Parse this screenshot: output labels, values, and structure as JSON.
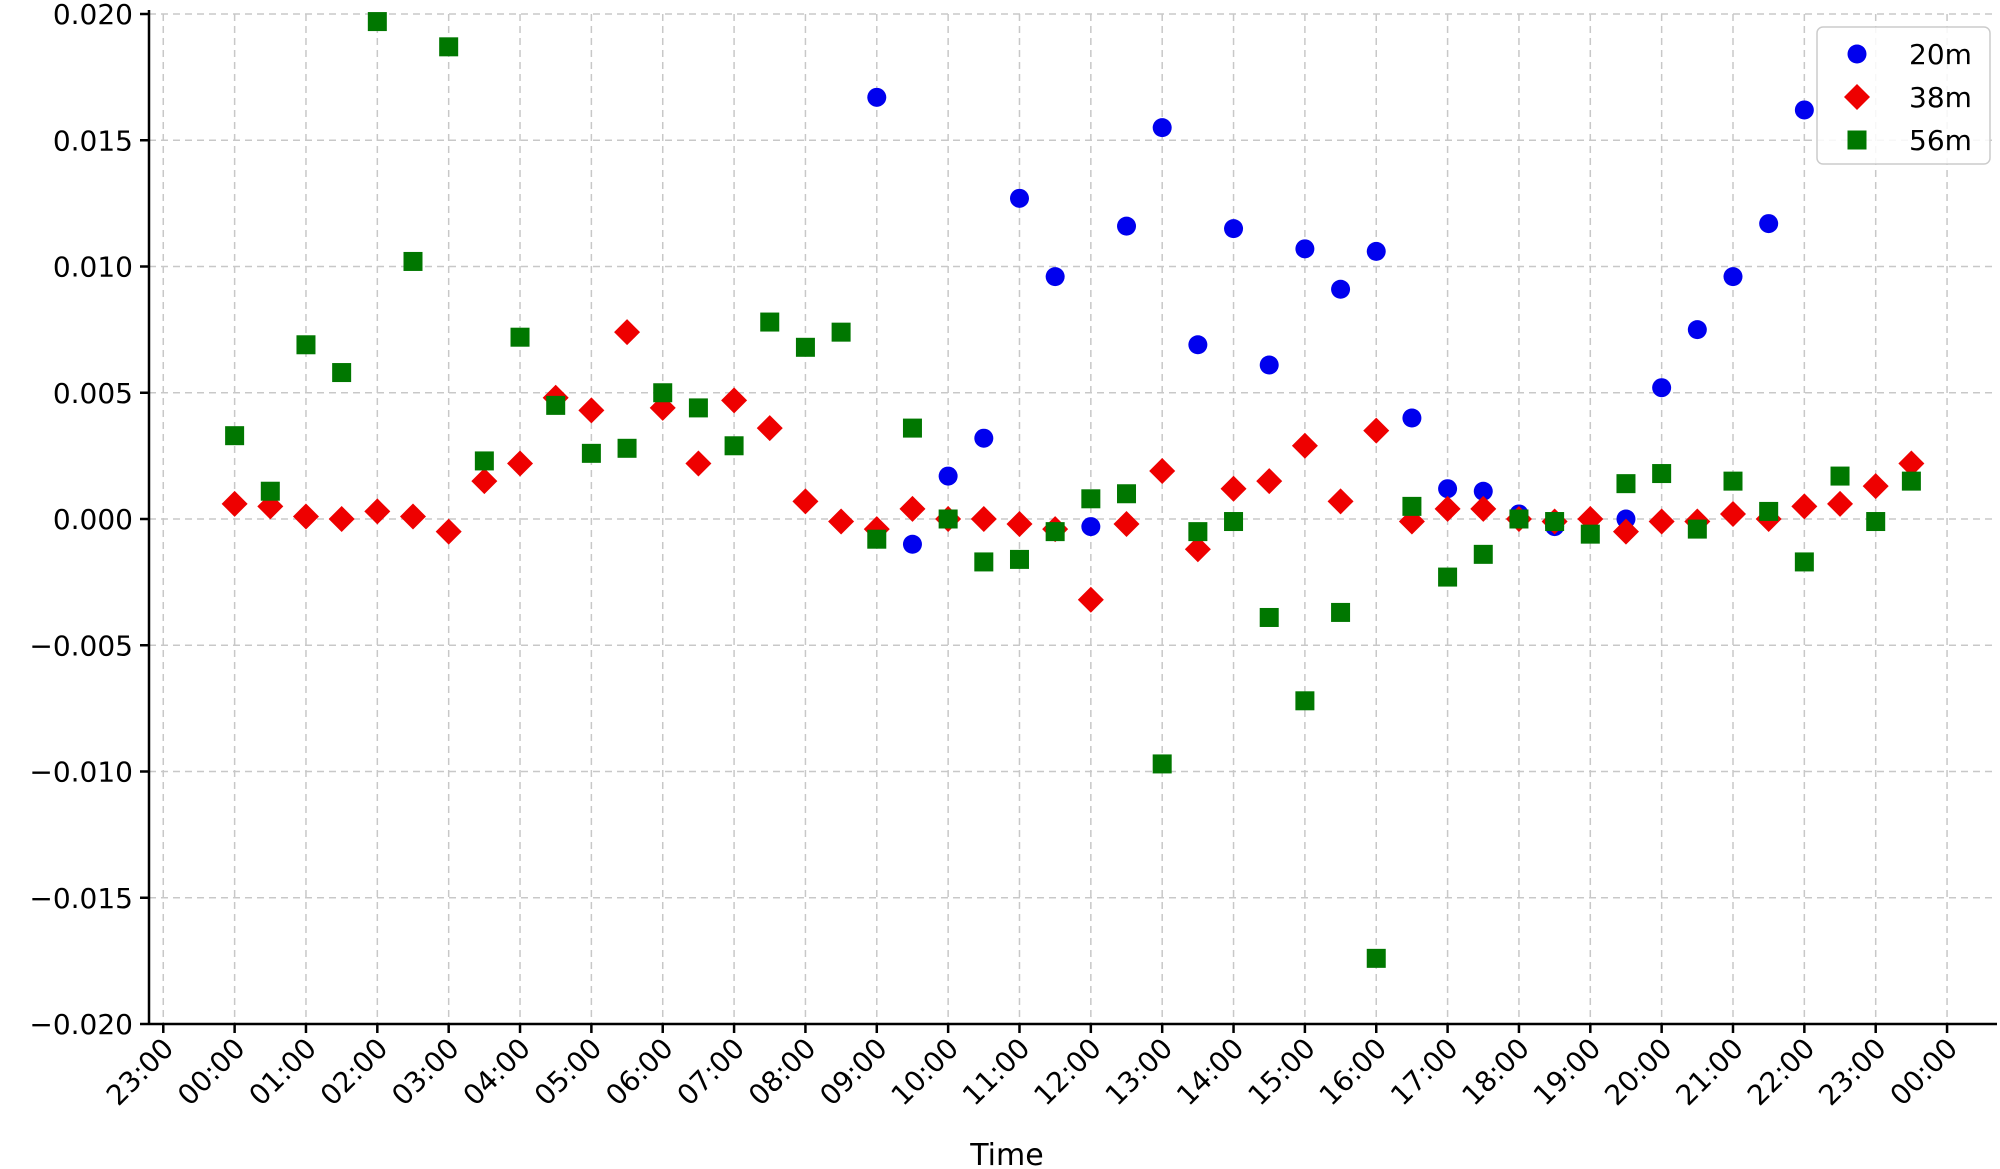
{
  "chart_data": {
    "type": "scatter",
    "title": "",
    "xlabel": "Time",
    "ylabel": "",
    "x_tick_labels": [
      "23:00",
      "00:00",
      "01:00",
      "02:00",
      "03:00",
      "04:00",
      "05:00",
      "06:00",
      "07:00",
      "08:00",
      "09:00",
      "10:00",
      "11:00",
      "12:00",
      "13:00",
      "14:00",
      "15:00",
      "16:00",
      "17:00",
      "18:00",
      "19:00",
      "20:00",
      "21:00",
      "22:00",
      "23:00",
      "00:00"
    ],
    "x_range_hours": [
      -1.2,
      24.7
    ],
    "y_ticks": [
      0.02,
      0.015,
      0.01,
      0.005,
      0.0,
      -0.005,
      -0.01,
      -0.015,
      -0.02
    ],
    "y_tick_labels": [
      "0.020",
      "0.015",
      "0.010",
      "0.005",
      "0.000",
      "−0.005",
      "−0.010",
      "−0.015",
      "−0.020"
    ],
    "ylim": [
      -0.02,
      0.02
    ],
    "grid": true,
    "legend": "top-right",
    "series": [
      {
        "name": "20m",
        "marker": "circle",
        "color": "#0000ee",
        "points": [
          [
            9.0,
            0.0167
          ],
          [
            9.5,
            -0.001
          ],
          [
            10.0,
            0.0017
          ],
          [
            10.5,
            0.0032
          ],
          [
            11.0,
            0.0127
          ],
          [
            11.5,
            0.0096
          ],
          [
            12.0,
            -0.0003
          ],
          [
            12.5,
            0.0116
          ],
          [
            13.0,
            0.0155
          ],
          [
            13.5,
            0.0069
          ],
          [
            14.0,
            0.0115
          ],
          [
            14.5,
            0.0061
          ],
          [
            15.0,
            0.0107
          ],
          [
            15.5,
            0.0091
          ],
          [
            16.0,
            0.0106
          ],
          [
            16.5,
            0.004
          ],
          [
            17.0,
            0.0012
          ],
          [
            17.5,
            0.0011
          ],
          [
            18.0,
            0.0002
          ],
          [
            18.5,
            -0.0003
          ],
          [
            19.5,
            0.0
          ],
          [
            20.0,
            0.0052
          ],
          [
            20.5,
            0.0075
          ],
          [
            21.0,
            0.0096
          ],
          [
            21.5,
            0.0117
          ],
          [
            22.0,
            0.0162
          ]
        ]
      },
      {
        "name": "38m",
        "marker": "diamond",
        "color": "#ee0000",
        "points": [
          [
            0.0,
            0.0006
          ],
          [
            0.5,
            0.0005
          ],
          [
            1.0,
            0.0001
          ],
          [
            1.5,
            0.0
          ],
          [
            2.0,
            0.0003
          ],
          [
            2.5,
            0.0001
          ],
          [
            3.0,
            -0.0005
          ],
          [
            3.5,
            0.0015
          ],
          [
            4.0,
            0.0022
          ],
          [
            4.5,
            0.0048
          ],
          [
            5.0,
            0.0043
          ],
          [
            5.5,
            0.0074
          ],
          [
            6.0,
            0.0044
          ],
          [
            6.5,
            0.0022
          ],
          [
            7.0,
            0.0047
          ],
          [
            7.5,
            0.0036
          ],
          [
            8.0,
            0.0007
          ],
          [
            8.5,
            -0.0001
          ],
          [
            9.0,
            -0.0004
          ],
          [
            9.5,
            0.0004
          ],
          [
            10.0,
            0.0
          ],
          [
            10.5,
            0.0
          ],
          [
            11.0,
            -0.0002
          ],
          [
            11.5,
            -0.0004
          ],
          [
            12.0,
            -0.0032
          ],
          [
            12.5,
            -0.0002
          ],
          [
            13.0,
            0.0019
          ],
          [
            13.5,
            -0.0012
          ],
          [
            14.0,
            0.0012
          ],
          [
            14.5,
            0.0015
          ],
          [
            15.0,
            0.0029
          ],
          [
            15.5,
            0.0007
          ],
          [
            16.0,
            0.0035
          ],
          [
            16.5,
            -0.0001
          ],
          [
            17.0,
            0.0004
          ],
          [
            17.5,
            0.0004
          ],
          [
            18.0,
            0.0
          ],
          [
            18.5,
            -0.0001
          ],
          [
            19.0,
            0.0
          ],
          [
            19.5,
            -0.0005
          ],
          [
            20.0,
            -0.0001
          ],
          [
            20.5,
            -0.0001
          ],
          [
            21.0,
            0.0002
          ],
          [
            21.5,
            0.0
          ],
          [
            22.0,
            0.0005
          ],
          [
            22.5,
            0.0006
          ],
          [
            23.0,
            0.0013
          ],
          [
            23.5,
            0.0022
          ]
        ]
      },
      {
        "name": "56m",
        "marker": "square",
        "color": "#007700",
        "points": [
          [
            0.0,
            0.0033
          ],
          [
            0.5,
            0.0011
          ],
          [
            1.0,
            0.0069
          ],
          [
            1.5,
            0.0058
          ],
          [
            2.0,
            0.0197
          ],
          [
            2.5,
            0.0102
          ],
          [
            3.0,
            0.0187
          ],
          [
            3.5,
            0.0023
          ],
          [
            4.0,
            0.0072
          ],
          [
            4.5,
            0.0045
          ],
          [
            5.0,
            0.0026
          ],
          [
            5.5,
            0.0028
          ],
          [
            6.0,
            0.005
          ],
          [
            6.5,
            0.0044
          ],
          [
            7.0,
            0.0029
          ],
          [
            7.5,
            0.0078
          ],
          [
            8.0,
            0.0068
          ],
          [
            8.5,
            0.0074
          ],
          [
            9.0,
            -0.0008
          ],
          [
            9.5,
            0.0036
          ],
          [
            10.0,
            0.0
          ],
          [
            10.5,
            -0.0017
          ],
          [
            11.0,
            -0.0016
          ],
          [
            11.5,
            -0.0005
          ],
          [
            12.0,
            0.0008
          ],
          [
            12.5,
            0.001
          ],
          [
            13.0,
            -0.0097
          ],
          [
            13.5,
            -0.0005
          ],
          [
            14.0,
            -0.0001
          ],
          [
            14.5,
            -0.0039
          ],
          [
            15.0,
            -0.0072
          ],
          [
            15.5,
            -0.0037
          ],
          [
            16.0,
            -0.0174
          ],
          [
            16.5,
            0.0005
          ],
          [
            17.0,
            -0.0023
          ],
          [
            17.5,
            -0.0014
          ],
          [
            18.0,
            0.0
          ],
          [
            18.5,
            -0.0001
          ],
          [
            19.0,
            -0.0006
          ],
          [
            19.5,
            0.0014
          ],
          [
            20.0,
            0.0018
          ],
          [
            20.5,
            -0.0004
          ],
          [
            21.0,
            0.0015
          ],
          [
            21.5,
            0.0003
          ],
          [
            22.0,
            -0.0017
          ],
          [
            22.5,
            0.0017
          ],
          [
            23.0,
            -0.0001
          ],
          [
            23.5,
            0.0015
          ]
        ]
      }
    ]
  }
}
